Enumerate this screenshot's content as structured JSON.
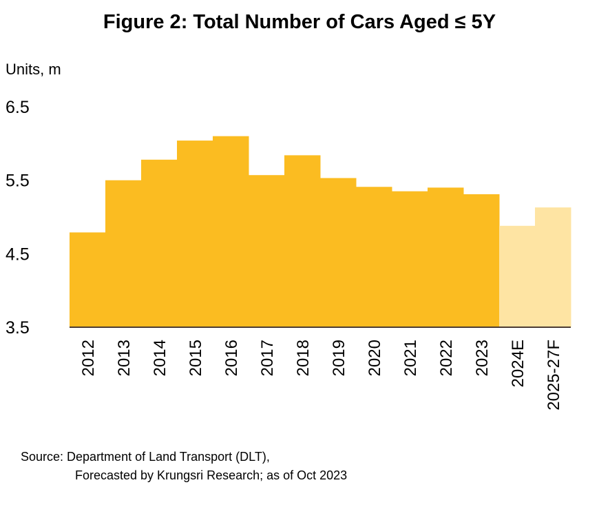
{
  "chart_data": {
    "type": "bar",
    "title": "Figure 2: Total Number of Cars Aged ≤ 5Y",
    "ylabel": "Units, m",
    "xlabel": "",
    "ylim": [
      3.5,
      6.5
    ],
    "yticks": [
      "6.5",
      "5.5",
      "4.5",
      "3.5"
    ],
    "categories": [
      "2012",
      "2013",
      "2014",
      "2015",
      "2016",
      "2017",
      "2018",
      "2019",
      "2020",
      "2021",
      "2022",
      "2023",
      "2024E",
      "2025-27F"
    ],
    "values": [
      4.79,
      5.5,
      5.78,
      6.04,
      6.1,
      5.57,
      5.84,
      5.53,
      5.41,
      5.35,
      5.4,
      5.31,
      4.88,
      5.13
    ],
    "forecast": [
      false,
      false,
      false,
      false,
      false,
      false,
      false,
      false,
      false,
      false,
      false,
      false,
      true,
      true
    ],
    "colors": {
      "actual": "#FBBC21",
      "forecast": "#FEE4A3",
      "axis": "#4A3B33"
    },
    "grid": false,
    "legend": "none"
  },
  "source": {
    "line1": "Source: Department of Land Transport (DLT),",
    "line2": "Forecasted by Krungsri Research; as of Oct 2023"
  }
}
